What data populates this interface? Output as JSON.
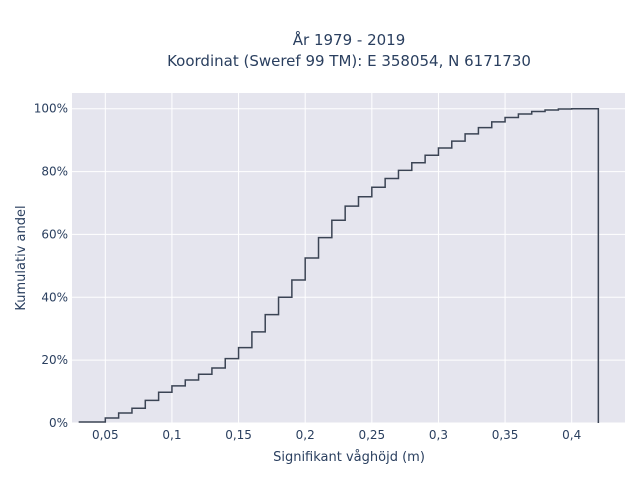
{
  "chart_data": {
    "type": "step",
    "title_line1": "År 1979 - 2019",
    "title_line2": "Koordinat (Sweref 99 TM): E 358054, N 6171730",
    "xlabel": "Signifikant våghöjd (m)",
    "ylabel": "Kumulativ andel",
    "xlim": [
      0.025,
      0.44
    ],
    "ylim": [
      0,
      1.05
    ],
    "x_ticks": [
      {
        "value": 0.05,
        "label": "0,05"
      },
      {
        "value": 0.1,
        "label": "0,1"
      },
      {
        "value": 0.15,
        "label": "0,15"
      },
      {
        "value": 0.2,
        "label": "0,2"
      },
      {
        "value": 0.25,
        "label": "0,25"
      },
      {
        "value": 0.3,
        "label": "0,3"
      },
      {
        "value": 0.35,
        "label": "0,35"
      },
      {
        "value": 0.4,
        "label": "0,4"
      }
    ],
    "y_ticks": [
      {
        "value": 0,
        "label": "0%"
      },
      {
        "value": 0.2,
        "label": "20%"
      },
      {
        "value": 0.4,
        "label": "40%"
      },
      {
        "value": 0.6,
        "label": "60%"
      },
      {
        "value": 0.8,
        "label": "80%"
      },
      {
        "value": 1.0,
        "label": "100%"
      }
    ],
    "grid": true,
    "line_color": "#3b4454",
    "plot_bg": "#e5e5ee",
    "series": [
      {
        "x": [
          0.04,
          0.05,
          0.06,
          0.07,
          0.08,
          0.09,
          0.1,
          0.11,
          0.12,
          0.13,
          0.14,
          0.15,
          0.16,
          0.17,
          0.18,
          0.19,
          0.2,
          0.21,
          0.22,
          0.23,
          0.24,
          0.25,
          0.26,
          0.27,
          0.28,
          0.29,
          0.3,
          0.31,
          0.32,
          0.33,
          0.34,
          0.35,
          0.36,
          0.37,
          0.38,
          0.39,
          0.4,
          0.41,
          0.42
        ],
        "y": [
          0.003,
          0.016,
          0.032,
          0.047,
          0.072,
          0.098,
          0.118,
          0.137,
          0.155,
          0.175,
          0.205,
          0.24,
          0.29,
          0.345,
          0.4,
          0.455,
          0.525,
          0.59,
          0.645,
          0.69,
          0.72,
          0.75,
          0.778,
          0.804,
          0.828,
          0.852,
          0.875,
          0.897,
          0.92,
          0.94,
          0.958,
          0.972,
          0.983,
          0.991,
          0.996,
          0.999,
          1.0,
          1.0,
          1.0
        ]
      }
    ]
  }
}
